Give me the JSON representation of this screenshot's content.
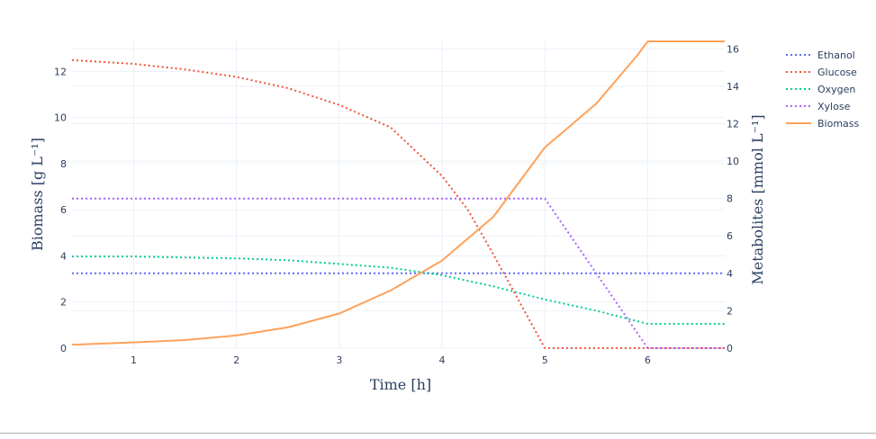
{
  "chart_data": {
    "type": "line",
    "xlabel": "Time [h]",
    "ylabel_left": "Biomass [g L⁻¹]",
    "ylabel_right": "Metabolites [mmol L⁻¹]",
    "xlim": [
      0.4,
      6.75
    ],
    "ylim_left": [
      0,
      13.3
    ],
    "ylim_right": [
      0,
      16.4
    ],
    "x_ticks": [
      "1",
      "2",
      "3",
      "4",
      "5",
      "6"
    ],
    "y_left_ticks": [
      "0",
      "2",
      "4",
      "6",
      "8",
      "10",
      "12"
    ],
    "y_right_ticks": [
      "0",
      "2",
      "4",
      "6",
      "8",
      "10",
      "12",
      "14",
      "16"
    ],
    "grid": true,
    "legend_position": "top-right",
    "series": [
      {
        "name": "Ethanol",
        "axis": "right",
        "style": "dotted",
        "color": "#636efa",
        "x": [
          0.4,
          1,
          2,
          3,
          4,
          5,
          6,
          6.75
        ],
        "y": [
          4,
          4,
          4,
          4,
          4,
          4,
          4,
          4
        ]
      },
      {
        "name": "Glucose",
        "axis": "right",
        "style": "dotted",
        "color": "#ef553b",
        "x": [
          0.4,
          1,
          1.5,
          2,
          2.5,
          3,
          3.5,
          4,
          4.25,
          4.5,
          4.75,
          5,
          5.5,
          6,
          6.75
        ],
        "y": [
          15.4,
          15.2,
          14.9,
          14.5,
          13.9,
          13.0,
          11.8,
          9.2,
          7.4,
          5.0,
          2.5,
          0,
          0,
          0,
          0
        ]
      },
      {
        "name": "Oxygen",
        "axis": "right",
        "style": "dotted",
        "color": "#00cc96",
        "x": [
          0.4,
          1,
          1.5,
          2,
          2.5,
          3,
          3.5,
          4,
          4.5,
          5,
          5.5,
          6,
          6.75
        ],
        "y": [
          4.9,
          4.9,
          4.85,
          4.8,
          4.7,
          4.5,
          4.3,
          3.9,
          3.3,
          2.6,
          2.0,
          1.3,
          1.3
        ]
      },
      {
        "name": "Xylose",
        "axis": "right",
        "style": "dotted",
        "color": "#ab63fa",
        "x": [
          0.4,
          1,
          2,
          3,
          4,
          5,
          5.5,
          6,
          6.75
        ],
        "y": [
          8,
          8,
          8,
          8,
          8,
          8,
          4,
          0,
          0
        ]
      },
      {
        "name": "Biomass",
        "axis": "left",
        "style": "solid",
        "color": "#ffa15a",
        "x": [
          0.4,
          1,
          1.5,
          2,
          2.5,
          3,
          3.5,
          4,
          4.5,
          5,
          5.5,
          5.9,
          6,
          6.75
        ],
        "y": [
          0.15,
          0.25,
          0.35,
          0.55,
          0.9,
          1.5,
          2.5,
          3.8,
          5.7,
          8.7,
          10.6,
          12.7,
          13.3,
          13.3
        ]
      }
    ]
  }
}
